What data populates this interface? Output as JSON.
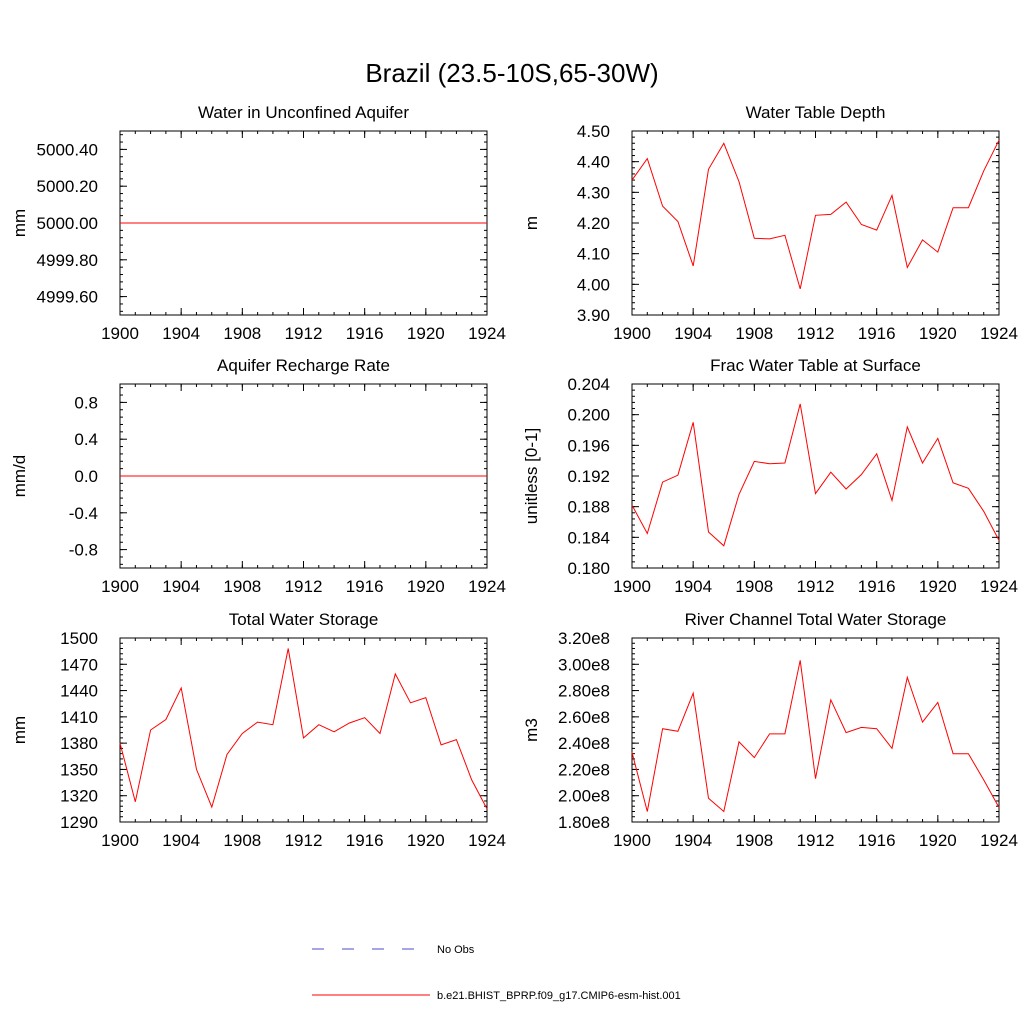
{
  "main_title": "Brazil (23.5-10S,65-30W)",
  "colors": {
    "model": "#ff0000",
    "obs": "#4c4cc8",
    "axis": "#000000"
  },
  "legend": {
    "obs_label": "No Obs",
    "model_label": "b.e21.BHIST_BPRP.f09_g17.CMIP6-esm-hist.001"
  },
  "chart_data": [
    {
      "type": "line",
      "title": "Water in Unconfined Aquifer",
      "ylabel": "mm",
      "xlim": [
        1900,
        1924
      ],
      "ylim": [
        4999.5,
        5000.5
      ],
      "xticks": [
        1900,
        1904,
        1908,
        1912,
        1916,
        1920,
        1924
      ],
      "yticks": [
        4999.6,
        4999.8,
        5000.0,
        5000.2,
        5000.4
      ],
      "ytick_labels": [
        "4999.60",
        "4999.80",
        "5000.00",
        "5000.20",
        "5000.40"
      ],
      "series": [
        {
          "x": [
            1900,
            1901,
            1902,
            1903,
            1904,
            1905,
            1906,
            1907,
            1908,
            1909,
            1910,
            1911,
            1912,
            1913,
            1914,
            1915,
            1916,
            1917,
            1918,
            1919,
            1920,
            1921,
            1922,
            1923,
            1924
          ],
          "values": [
            5000,
            5000,
            5000,
            5000,
            5000,
            5000,
            5000,
            5000,
            5000,
            5000,
            5000,
            5000,
            5000,
            5000,
            5000,
            5000,
            5000,
            5000,
            5000,
            5000,
            5000,
            5000,
            5000,
            5000,
            5000
          ]
        }
      ]
    },
    {
      "type": "line",
      "title": "Water Table Depth",
      "ylabel": "m",
      "xlim": [
        1900,
        1924
      ],
      "ylim": [
        3.9,
        4.5
      ],
      "xticks": [
        1900,
        1904,
        1908,
        1912,
        1916,
        1920,
        1924
      ],
      "yticks": [
        3.9,
        4.0,
        4.1,
        4.2,
        4.3,
        4.4,
        4.5
      ],
      "ytick_labels": [
        "3.90",
        "4.00",
        "4.10",
        "4.20",
        "4.30",
        "4.40",
        "4.50"
      ],
      "series": [
        {
          "x": [
            1900,
            1901,
            1902,
            1903,
            1904,
            1905,
            1906,
            1907,
            1908,
            1909,
            1910,
            1911,
            1912,
            1913,
            1914,
            1915,
            1916,
            1917,
            1918,
            1919,
            1920,
            1921,
            1922,
            1923,
            1924
          ],
          "values": [
            4.34,
            4.41,
            4.255,
            4.205,
            4.06,
            4.375,
            4.46,
            4.335,
            4.15,
            4.148,
            4.16,
            3.985,
            4.225,
            4.228,
            4.268,
            4.195,
            4.177,
            4.29,
            4.055,
            4.145,
            4.105,
            4.25,
            4.25,
            4.37,
            4.47
          ]
        }
      ]
    },
    {
      "type": "line",
      "title": "Aquifer Recharge Rate",
      "ylabel": "mm/d",
      "xlim": [
        1900,
        1924
      ],
      "ylim": [
        -1.0,
        1.0
      ],
      "xticks": [
        1900,
        1904,
        1908,
        1912,
        1916,
        1920,
        1924
      ],
      "yticks": [
        -0.8,
        -0.4,
        0.0,
        0.4,
        0.8
      ],
      "ytick_labels": [
        "-0.8",
        "-0.4",
        "0.0",
        "0.4",
        "0.8"
      ],
      "series": [
        {
          "x": [
            1900,
            1901,
            1902,
            1903,
            1904,
            1905,
            1906,
            1907,
            1908,
            1909,
            1910,
            1911,
            1912,
            1913,
            1914,
            1915,
            1916,
            1917,
            1918,
            1919,
            1920,
            1921,
            1922,
            1923,
            1924
          ],
          "values": [
            0,
            0,
            0,
            0,
            0,
            0,
            0,
            0,
            0,
            0,
            0,
            0,
            0,
            0,
            0,
            0,
            0,
            0,
            0,
            0,
            0,
            0,
            0,
            0,
            0
          ]
        }
      ]
    },
    {
      "type": "line",
      "title": "Frac Water Table at Surface",
      "ylabel": "unitless [0-1]",
      "xlim": [
        1900,
        1924
      ],
      "ylim": [
        0.18,
        0.204
      ],
      "xticks": [
        1900,
        1904,
        1908,
        1912,
        1916,
        1920,
        1924
      ],
      "yticks": [
        0.18,
        0.184,
        0.188,
        0.192,
        0.196,
        0.2,
        0.204
      ],
      "ytick_labels": [
        "0.180",
        "0.184",
        "0.188",
        "0.192",
        "0.196",
        "0.200",
        "0.204"
      ],
      "series": [
        {
          "x": [
            1900,
            1901,
            1902,
            1903,
            1904,
            1905,
            1906,
            1907,
            1908,
            1909,
            1910,
            1911,
            1912,
            1913,
            1914,
            1915,
            1916,
            1917,
            1918,
            1919,
            1920,
            1921,
            1922,
            1923,
            1924
          ],
          "values": [
            0.1882,
            0.1845,
            0.1912,
            0.1921,
            0.199,
            0.1847,
            0.1829,
            0.1896,
            0.1939,
            0.1936,
            0.1937,
            0.2014,
            0.1897,
            0.1925,
            0.1903,
            0.1922,
            0.1949,
            0.1888,
            0.1984,
            0.1937,
            0.1969,
            0.1911,
            0.1904,
            0.1874,
            0.1836
          ]
        }
      ]
    },
    {
      "type": "line",
      "title": "Total Water Storage",
      "ylabel": "mm",
      "xlim": [
        1900,
        1924
      ],
      "ylim": [
        1290,
        1500
      ],
      "xticks": [
        1900,
        1904,
        1908,
        1912,
        1916,
        1920,
        1924
      ],
      "yticks": [
        1290,
        1320,
        1350,
        1380,
        1410,
        1440,
        1470,
        1500
      ],
      "ytick_labels": [
        "1290",
        "1320",
        "1350",
        "1380",
        "1410",
        "1440",
        "1470",
        "1500"
      ],
      "series": [
        {
          "x": [
            1900,
            1901,
            1902,
            1903,
            1904,
            1905,
            1906,
            1907,
            1908,
            1909,
            1910,
            1911,
            1912,
            1913,
            1914,
            1915,
            1916,
            1917,
            1918,
            1919,
            1920,
            1921,
            1922,
            1923,
            1924
          ],
          "values": [
            1380,
            1313,
            1395,
            1407,
            1443,
            1350,
            1307,
            1367,
            1391,
            1404,
            1401,
            1488,
            1386,
            1401,
            1393,
            1403,
            1409,
            1391,
            1459,
            1426,
            1432,
            1378,
            1384,
            1338,
            1305
          ]
        }
      ]
    },
    {
      "type": "line",
      "title": "River Channel Total Water Storage",
      "ylabel": "m3",
      "xlim": [
        1900,
        1924
      ],
      "ylim": [
        180000000,
        320000000
      ],
      "xticks": [
        1900,
        1904,
        1908,
        1912,
        1916,
        1920,
        1924
      ],
      "yticks": [
        180000000,
        200000000,
        220000000,
        240000000,
        260000000,
        280000000,
        300000000,
        320000000
      ],
      "ytick_labels": [
        "1.80e8",
        "2.00e8",
        "2.20e8",
        "2.40e8",
        "2.60e8",
        "2.80e8",
        "3.00e8",
        "3.20e8"
      ],
      "series": [
        {
          "x": [
            1900,
            1901,
            1902,
            1903,
            1904,
            1905,
            1906,
            1907,
            1908,
            1909,
            1910,
            1911,
            1912,
            1913,
            1914,
            1915,
            1916,
            1917,
            1918,
            1919,
            1920,
            1921,
            1922,
            1923,
            1924
          ],
          "values": [
            233000000,
            188000000,
            251000000,
            249000000,
            278000000,
            198000000,
            188000000,
            241000000,
            229000000,
            247000000,
            247000000,
            303000000,
            213000000,
            273000000,
            248000000,
            252000000,
            251000000,
            236000000,
            290000000,
            256000000,
            271000000,
            232000000,
            232000000,
            212000000,
            191000000
          ]
        }
      ]
    }
  ]
}
